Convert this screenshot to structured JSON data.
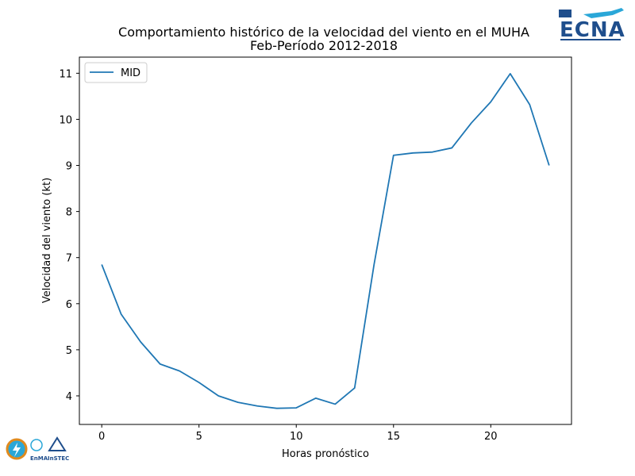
{
  "chart_data": {
    "type": "line",
    "title": "Comportamiento histórico de la velocidad del viento en el MUHA",
    "subtitle": "Feb-Período 2012-2018",
    "xlabel": "Horas pronóstico",
    "ylabel": "Velocidad del viento (kt)",
    "xlim": [
      -1.15,
      24.15
    ],
    "ylim": [
      3.38,
      11.35
    ],
    "xticks": [
      0,
      5,
      10,
      15,
      20
    ],
    "yticks": [
      4,
      5,
      6,
      7,
      8,
      9,
      10,
      11
    ],
    "grid": false,
    "legend_position": "upper-left",
    "x": [
      0,
      1,
      2,
      3,
      4,
      5,
      6,
      7,
      8,
      9,
      10,
      11,
      12,
      13,
      14,
      15,
      16,
      17,
      18,
      19,
      20,
      21,
      22,
      23
    ],
    "series": [
      {
        "name": "MID",
        "color": "#1f77b4",
        "values": [
          6.85,
          5.77,
          5.17,
          4.69,
          4.54,
          4.29,
          4.0,
          3.86,
          3.78,
          3.73,
          3.74,
          3.95,
          3.82,
          4.17,
          6.85,
          9.22,
          9.27,
          9.29,
          9.38,
          9.92,
          10.38,
          10.99,
          10.32,
          9.0
        ]
      }
    ]
  },
  "logos": {
    "top_right": "ECNA",
    "bottom_left_1": "EnMA",
    "bottom_left_2": "InSTEC"
  },
  "colors": {
    "line": "#1f77b4",
    "axis": "#000000",
    "background": "#ffffff",
    "logo_blue": "#1f4e8c",
    "logo_cyan": "#2aa7d8",
    "logo_orange": "#e08a1e"
  }
}
